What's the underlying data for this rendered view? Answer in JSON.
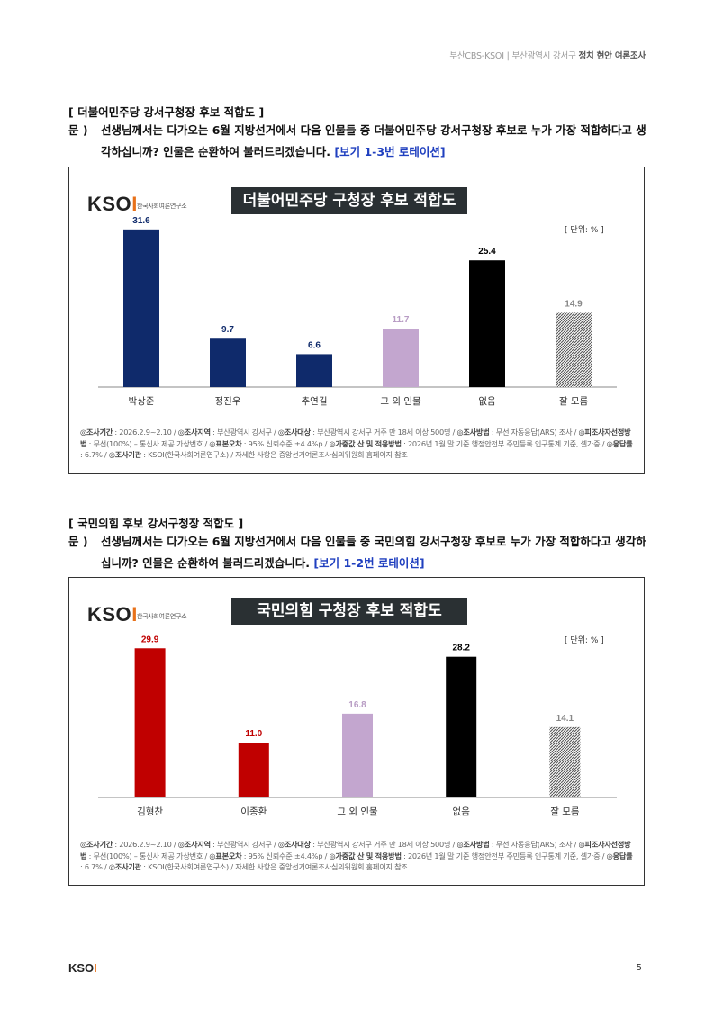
{
  "header": {
    "left": "부산CBS-KSOI",
    "sep": "|",
    "mid": "부산광역시 강서구",
    "right": "정치 현안 여론조사"
  },
  "colors": {
    "navy": "#0f2a6b",
    "lilac": "#c3a6cf",
    "black": "#000000",
    "red": "#c00000",
    "hatch": "#9a9a9a"
  },
  "logo": {
    "mark": "KSOI",
    "sub": "한국사회여론연구소"
  },
  "sections": [
    {
      "title": "[ 더불어민주당 강서구청장 후보 적합도 ]",
      "q_label": "문 )",
      "q_text": "선생님께서는 다가오는 6월 지방선거에서 다음 인물들 중 더불어민주당 강서구청장 후보로 누가 가장 적합하다고 생각하십니까? 인물은 순환하여 불러드리겠습니다.",
      "q_note": "[보기 1-3번 로테이션]",
      "chart_title": "더불어민주당 구청장 후보 적합도",
      "unit": "[ 단위: % ]",
      "note": [
        "◎조사기간",
        " : 2026.2.9~2.10 / ",
        "◎조사지역",
        " : 부산광역시 강서구 / ",
        "◎조사대상",
        " : 부산광역시 강서구 거주 만 18세 이상 500명 / ",
        "◎조사방법",
        " : 무선 자동응답(ARS) 조사 / ",
        "◎피조사자선정방법",
        " : 무선(100%) – 통신사 제공 가상번호 / ",
        "◎표본오차",
        " : 95% 신뢰수준 ±4.4%p / ",
        "◎가중값 산 및 적용방법",
        " : 2026년 1월 말 기준 행정안전부 주민등록 인구통계 기준, 셀가중 / ",
        "◎응답률",
        " : 6.7% / ",
        "◎조사기관",
        " : KSOI(한국사회여론연구소) / 자세한 사항은 중앙선거여론조사심의위원회 홈페이지 참조"
      ]
    },
    {
      "title": "[ 국민의힘 후보 강서구청장 적합도 ]",
      "q_label": "문 )",
      "q_text": "선생님께서는 다가오는 6월 지방선거에서 다음 인물들 중 국민의힘 강서구청장 후보로 누가 가장 적합하다고 생각하십니까? 인물은 순환하여 불러드리겠습니다.",
      "q_note": "[보기 1-2번 로테이션]",
      "chart_title": "국민의힘 구청장 후보 적합도",
      "unit": "[ 단위: % ]",
      "note": [
        "◎조사기간",
        " : 2026.2.9~2.10 / ",
        "◎조사지역",
        " : 부산광역시 강서구 / ",
        "◎조사대상",
        " : 부산광역시 강서구 거주 만 18세 이상 500명 / ",
        "◎조사방법",
        " : 무선 자동응답(ARS) 조사 / ",
        "◎피조사자선정방법",
        " : 무선(100%) – 통신사 제공 가상번호 / ",
        "◎표본오차",
        " : 95% 신뢰수준 ±4.4%p / ",
        "◎가중값 산 및 적용방법",
        " : 2026년 1월 말 기준 행정안전부 주민등록 인구통계 기준, 셀가중 / ",
        "◎응답률",
        " : 6.7% / ",
        "◎조사기관",
        " : KSOI(한국사회여론연구소) / 자세한 사항은 중앙선거여론조사심의위원회 홈페이지 참조"
      ]
    }
  ],
  "chart_data": [
    {
      "type": "bar",
      "title": "더불어민주당 구청장 후보 적합도",
      "unit": "%",
      "categories": [
        "박상준",
        "정진우",
        "추연길",
        "그 외 인물",
        "없음",
        "잘 모름"
      ],
      "values": [
        31.6,
        9.7,
        6.6,
        11.7,
        25.4,
        14.9
      ],
      "bar_colors": [
        "navy",
        "navy",
        "navy",
        "lilac",
        "black",
        "hatch"
      ],
      "ylim": [
        0,
        35
      ],
      "grid": false,
      "legend": "none"
    },
    {
      "type": "bar",
      "title": "국민의힘 구청장 후보 적합도",
      "unit": "%",
      "categories": [
        "김형찬",
        "이종환",
        "그 외 인물",
        "없음",
        "잘 모름"
      ],
      "values": [
        29.9,
        11.0,
        16.8,
        28.2,
        14.1
      ],
      "bar_colors": [
        "red",
        "red",
        "lilac",
        "black",
        "hatch"
      ],
      "ylim": [
        0,
        35
      ],
      "grid": false,
      "legend": "none"
    }
  ],
  "footer": {
    "logo": "KSOI",
    "page": "5"
  }
}
